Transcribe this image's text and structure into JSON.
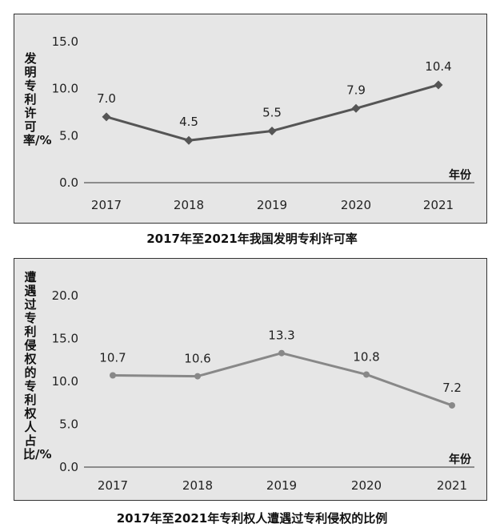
{
  "chart_data": [
    {
      "type": "line",
      "title": "2017年至2021年我国发明专利许可率",
      "ylabel": "发明专利许可率/%",
      "xlabel": "年份",
      "categories": [
        "2017",
        "2018",
        "2019",
        "2020",
        "2021"
      ],
      "values": [
        7.0,
        4.5,
        5.5,
        7.9,
        10.4
      ],
      "data_labels": [
        "7.0",
        "4.5",
        "5.5",
        "7.9",
        "10.4"
      ],
      "yticks": [
        "0.0",
        "5.0",
        "10.0",
        "15.0"
      ],
      "ylim": [
        0,
        15
      ],
      "marker": "diamond",
      "grid": false,
      "colors": {
        "line": "#555555",
        "background": "#e6e6e6"
      }
    },
    {
      "type": "line",
      "title": "2017年至2021年专利权人遭遇过专利侵权的比例",
      "ylabel": "遭遇过专利侵权的专利权人占比/%",
      "xlabel": "年份",
      "categories": [
        "2017",
        "2018",
        "2019",
        "2020",
        "2021"
      ],
      "values": [
        10.7,
        10.6,
        13.3,
        10.8,
        7.2
      ],
      "data_labels": [
        "10.7",
        "10.6",
        "13.3",
        "10.8",
        "7.2"
      ],
      "yticks": [
        "0.0",
        "5.0",
        "10.0",
        "15.0",
        "20.0"
      ],
      "ylim": [
        0,
        20
      ],
      "marker": "circle",
      "grid": false,
      "colors": {
        "line": "#888888",
        "background": "#e6e6e6"
      }
    }
  ]
}
